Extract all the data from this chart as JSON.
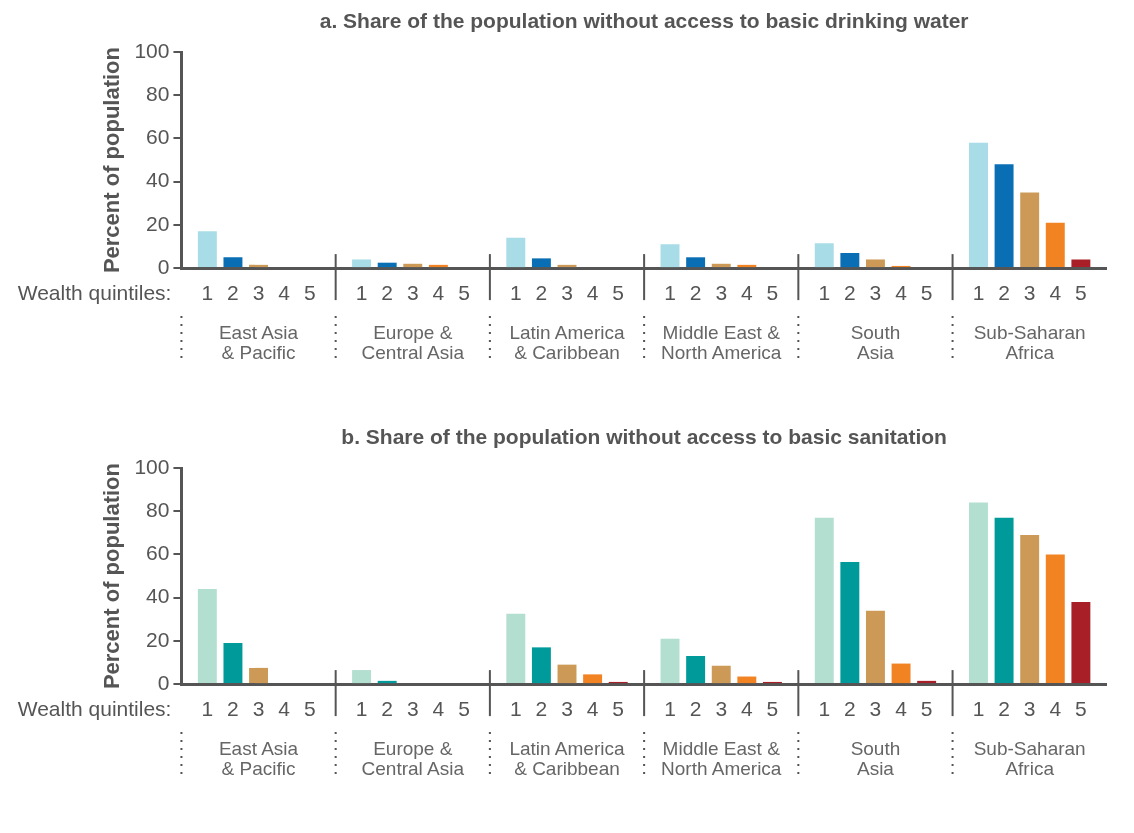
{
  "chart_data": [
    {
      "type": "bar",
      "title": "a. Share of the population without access to basic drinking water",
      "ylabel": "Percent of population",
      "xlabel": "Wealth quintiles:",
      "categories": [
        "East Asia\n& Pacific",
        "Europe &\nCentral Asia",
        "Latin America\n& Caribbean",
        "Middle East &\nNorth America",
        "South\nAsia",
        "Sub-Saharan\nAfrica"
      ],
      "series": [
        {
          "name": "1",
          "color": "#a8dce6",
          "values": [
            17,
            4,
            14,
            11,
            11.5,
            58
          ]
        },
        {
          "name": "2",
          "color": "#0a6eb4",
          "values": [
            5,
            2.5,
            4.5,
            5,
            7,
            48
          ]
        },
        {
          "name": "3",
          "color": "#cc9a56",
          "values": [
            1.5,
            2,
            1.5,
            2,
            4,
            35
          ]
        },
        {
          "name": "4",
          "color": "#f28322",
          "values": [
            0,
            1.5,
            0,
            1.5,
            1,
            21
          ]
        },
        {
          "name": "5",
          "color": "#a91f27",
          "values": [
            0,
            0,
            0,
            0,
            0,
            4
          ]
        }
      ],
      "ylim": [
        0,
        100
      ],
      "yticks": [
        0,
        20,
        40,
        60,
        80,
        100
      ]
    },
    {
      "type": "bar",
      "title": "b. Share of the population without access to basic sanitation",
      "ylabel": "Percent of population",
      "xlabel": "Wealth quintiles:",
      "categories": [
        "East Asia\n& Pacific",
        "Europe &\nCentral Asia",
        "Latin America\n& Caribbean",
        "Middle East &\nNorth America",
        "South\nAsia",
        "Sub-Saharan\nAfrica"
      ],
      "series": [
        {
          "name": "1",
          "color": "#b3dfd0",
          "values": [
            44,
            6.5,
            32.5,
            21,
            77,
            84
          ]
        },
        {
          "name": "2",
          "color": "#009a9a",
          "values": [
            19,
            1.5,
            17,
            13,
            56.5,
            77
          ]
        },
        {
          "name": "3",
          "color": "#cc9a56",
          "values": [
            7.5,
            0,
            9,
            8.5,
            34,
            69
          ]
        },
        {
          "name": "4",
          "color": "#f28322",
          "values": [
            0,
            0,
            4.5,
            3.5,
            9.5,
            60
          ]
        },
        {
          "name": "5",
          "color": "#a91f27",
          "values": [
            0,
            0,
            1,
            1,
            1.5,
            38
          ]
        }
      ],
      "ylim": [
        0,
        100
      ],
      "yticks": [
        0,
        20,
        40,
        60,
        80,
        100
      ]
    }
  ]
}
